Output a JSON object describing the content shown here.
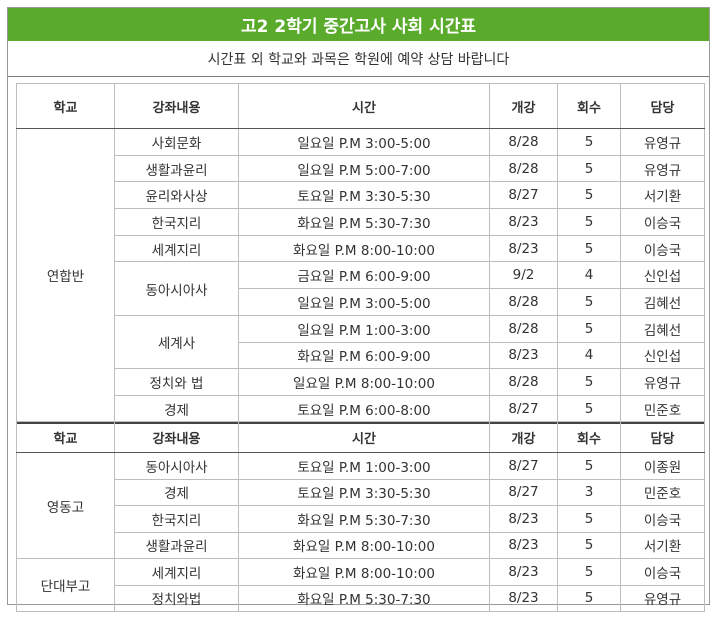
{
  "title": "고2 2학기 중간고사 사회 시간표",
  "notice": "시간표 외 학교와 과목은 학원에 예약 상담 바랍니다",
  "headers": {
    "school": "학교",
    "course": "강좌내용",
    "time": "시간",
    "start": "개강",
    "sessions": "회수",
    "teacher": "담당"
  },
  "section1": {
    "school": "연합반",
    "rows": [
      {
        "course": "사회문화",
        "time": "일요일 P.M 3:00-5:00",
        "start": "8/28",
        "sessions": "5",
        "teacher": "유영규"
      },
      {
        "course": "생활과윤리",
        "time": "일요일 P.M 5:00-7:00",
        "start": "8/28",
        "sessions": "5",
        "teacher": "유영규"
      },
      {
        "course": "윤리와사상",
        "time": "토요일 P.M 3:30-5:30",
        "start": "8/27",
        "sessions": "5",
        "teacher": "서기환"
      },
      {
        "course": "한국지리",
        "time": "화요일 P.M 5:30-7:30",
        "start": "8/23",
        "sessions": "5",
        "teacher": "이승국"
      },
      {
        "course": "세계지리",
        "time": "화요일 P.M 8:00-10:00",
        "start": "8/23",
        "sessions": "5",
        "teacher": "이승국"
      },
      {
        "course": "동아시아사",
        "time": "금요일 P.M 6:00-9:00",
        "start": "9/2",
        "sessions": "4",
        "teacher": "신인섭"
      },
      {
        "course": "",
        "time": "일요일 P.M 3:00-5:00",
        "start": "8/28",
        "sessions": "5",
        "teacher": "김혜선"
      },
      {
        "course": "세계사",
        "time": "일요일 P.M 1:00-3:00",
        "start": "8/28",
        "sessions": "5",
        "teacher": "김혜선"
      },
      {
        "course": "",
        "time": "화요일 P.M 6:00-9:00",
        "start": "8/23",
        "sessions": "4",
        "teacher": "신인섭"
      },
      {
        "course": "정치와 법",
        "time": "일요일 P.M 8:00-10:00",
        "start": "8/28",
        "sessions": "5",
        "teacher": "유영규"
      },
      {
        "course": "경제",
        "time": "토요일 P.M 6:00-8:00",
        "start": "8/27",
        "sessions": "5",
        "teacher": "민준호"
      }
    ]
  },
  "section2": {
    "school_a": "영동고",
    "school_b": "단대부고",
    "rows": [
      {
        "course": "동아시아사",
        "time": "토요일 P.M 1:00-3:00",
        "start": "8/27",
        "sessions": "5",
        "teacher": "이종원"
      },
      {
        "course": "경제",
        "time": "토요일 P.M 3:30-5:30",
        "start": "8/27",
        "sessions": "3",
        "teacher": "민준호"
      },
      {
        "course": "한국지리",
        "time": "화요일 P.M 5:30-7:30",
        "start": "8/23",
        "sessions": "5",
        "teacher": "이승국"
      },
      {
        "course": "생활과윤리",
        "time": "화요일 P.M 8:00-10:00",
        "start": "8/23",
        "sessions": "5",
        "teacher": "서기환"
      },
      {
        "course": "세계지리",
        "time": "화요일 P.M 8:00-10:00",
        "start": "8/23",
        "sessions": "5",
        "teacher": "이승국"
      },
      {
        "course": "정치와법",
        "time": "화요일 P.M 5:30-7:30",
        "start": "8/23",
        "sessions": "5",
        "teacher": "유영규"
      }
    ]
  },
  "colors": {
    "title_bg": "#5aab2c",
    "title_text": "#ffffff"
  }
}
